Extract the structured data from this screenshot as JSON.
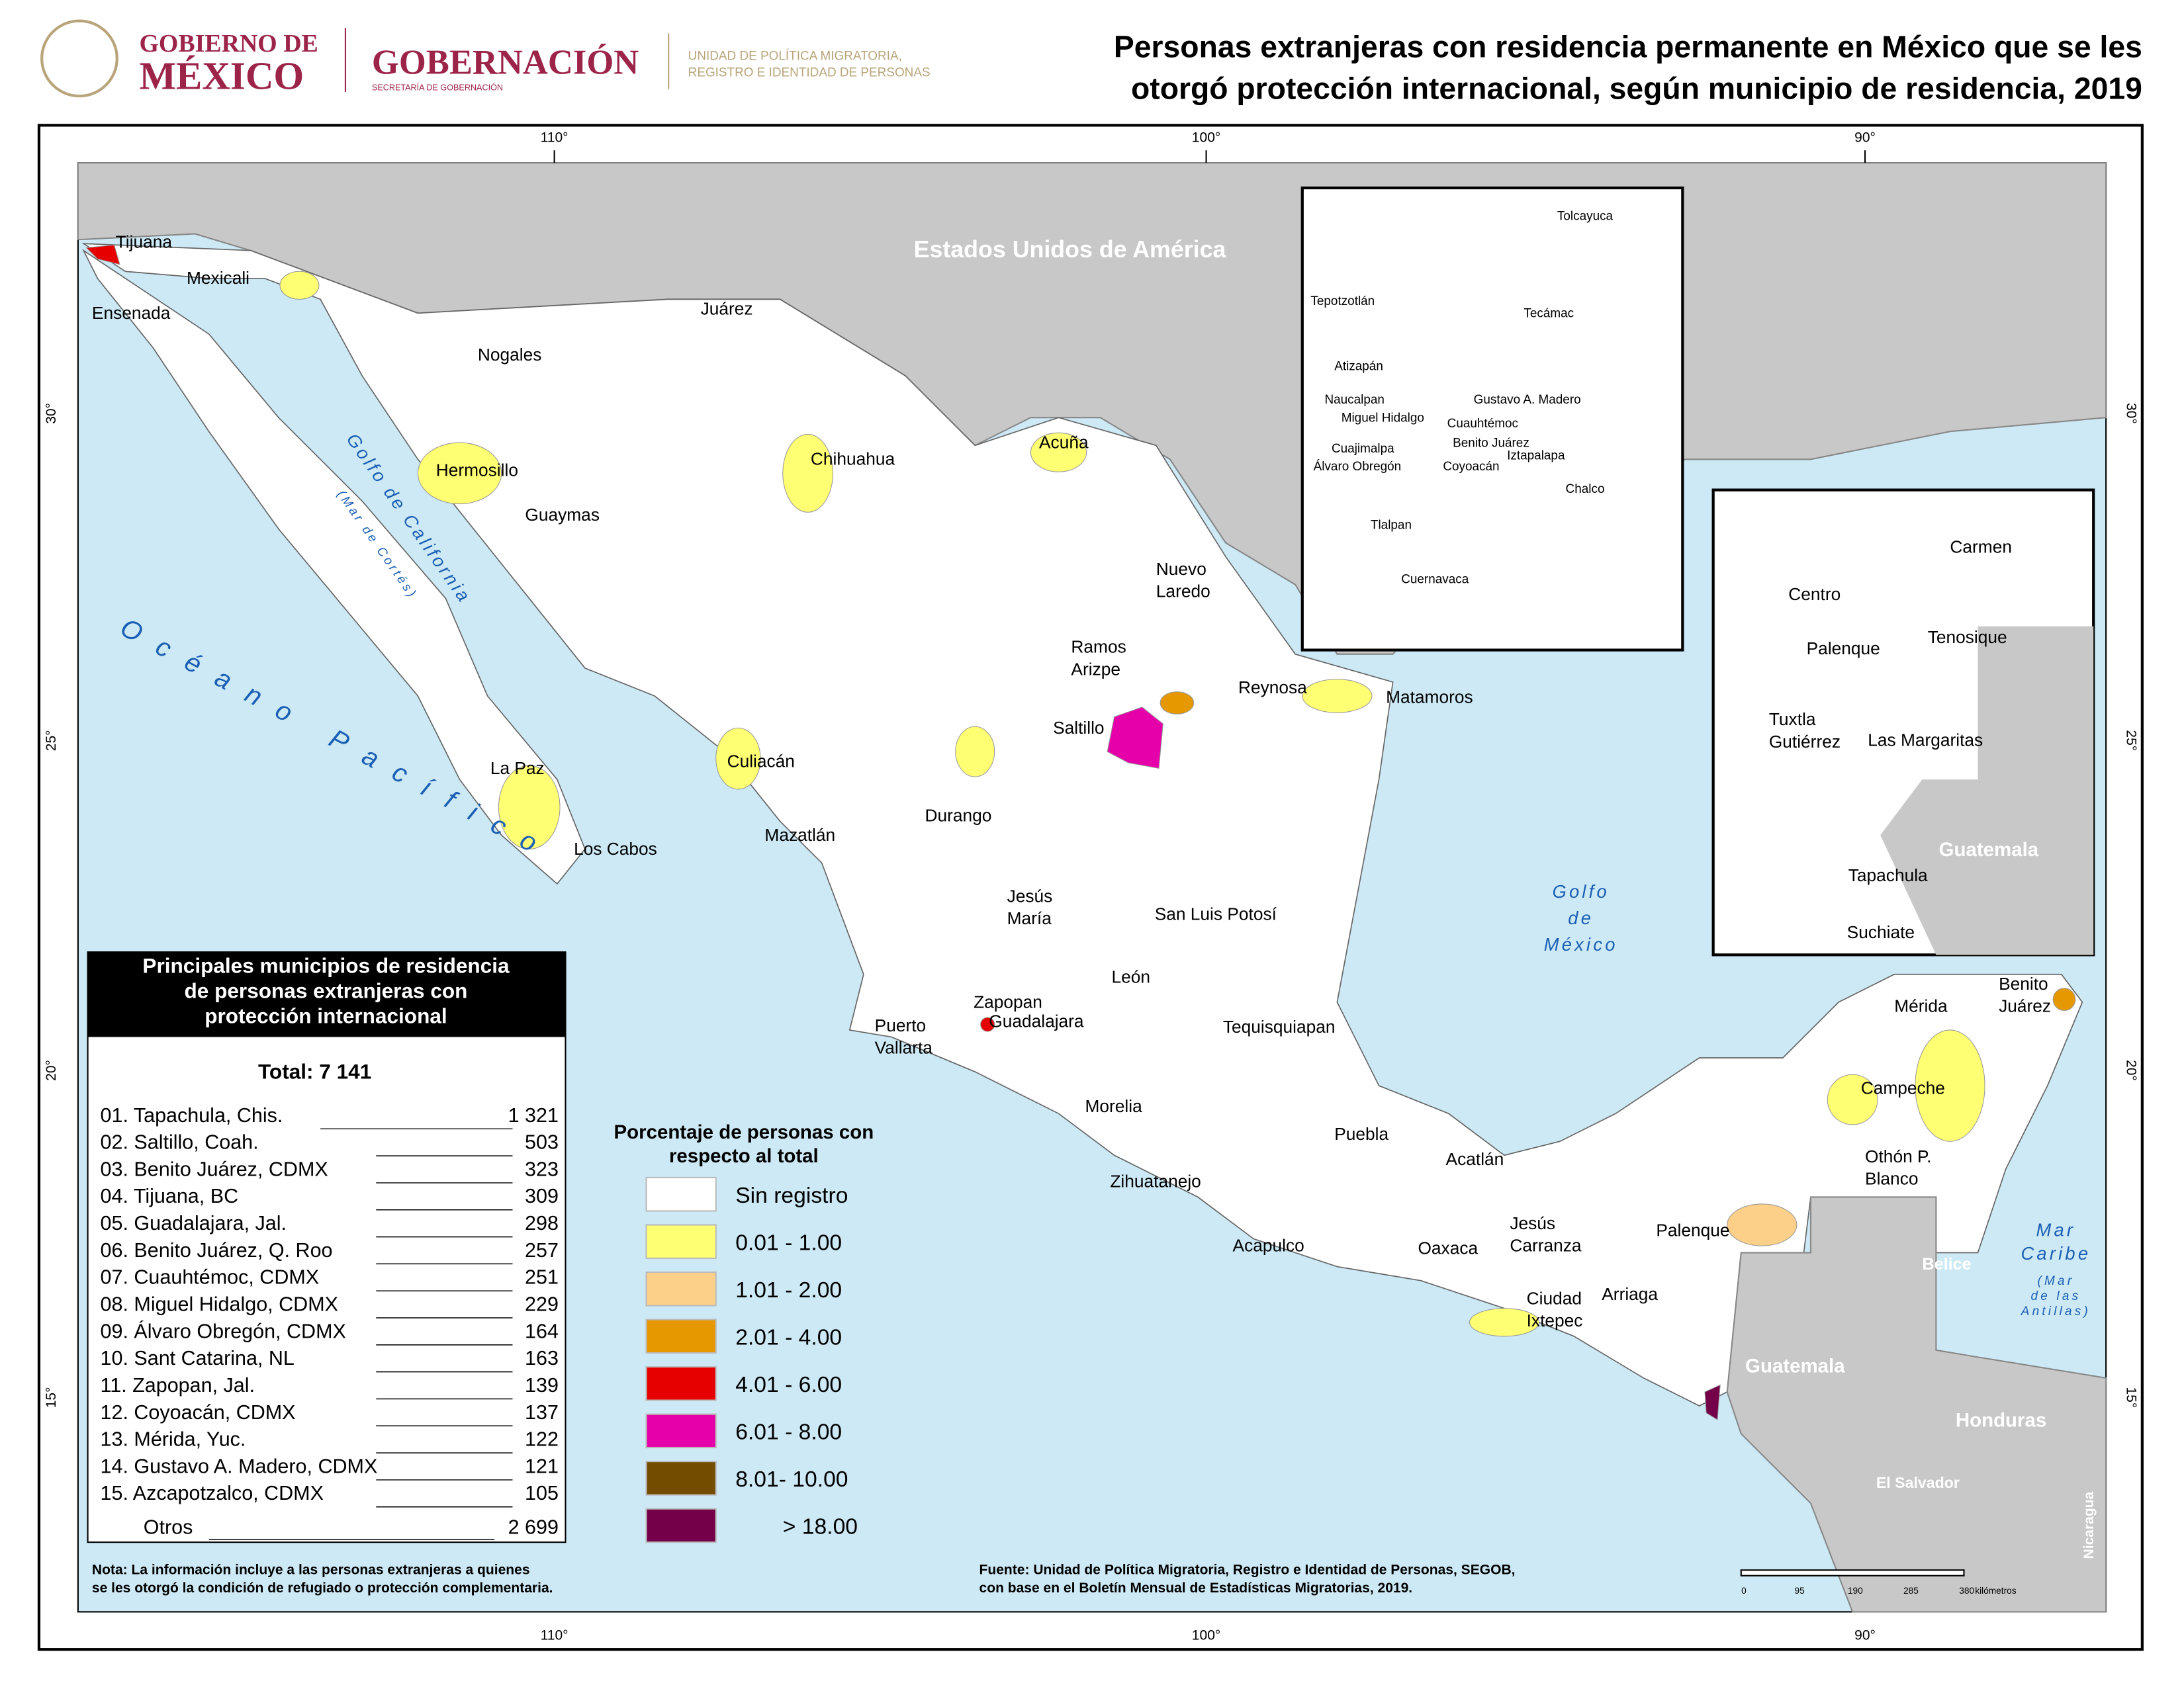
{
  "header": {
    "gov_line1": "GOBIERNO DE",
    "gov_line2": "MÉXICO",
    "dept": "GOBERNACIÓN",
    "dept_sub": "SECRETARÍA DE GOBERNACIÓN",
    "unit_line1": "UNIDAD DE POLÍTICA MIGRATORIA,",
    "unit_line2": "REGISTRO E IDENTIDAD DE PERSONAS",
    "title_line1": "Personas extranjeras con residencia permanente en México que se les",
    "title_line2": "otorgó protección internacional, según municipio de residencia, 2019"
  },
  "graticule": {
    "longitudes": [
      "110°",
      "100°",
      "90°"
    ],
    "latitudes": [
      "30°",
      "25°",
      "20°",
      "15°"
    ]
  },
  "countries": [
    "Estados Unidos de América",
    "Guatemala",
    "Belice",
    "Honduras",
    "El Salvador",
    "Nicaragua",
    "Guatemala"
  ],
  "water": [
    [
      "Océano Pacífico"
    ],
    [
      "Golfo de California",
      "(Mar de Cortés)"
    ],
    [
      "Golfo",
      "de",
      "México"
    ],
    [
      "Mar",
      "Caribe"
    ],
    [
      "(Mar",
      "de las",
      "Antillas)"
    ]
  ],
  "places": [
    [
      "Tijuana"
    ],
    [
      "Mexicali"
    ],
    [
      "Ensenada"
    ],
    [
      "Nogales"
    ],
    [
      "Juárez"
    ],
    [
      "Hermosillo"
    ],
    [
      "Guaymas"
    ],
    [
      "Chihuahua"
    ],
    [
      "Acuña"
    ],
    [
      "Nuevo",
      "Laredo"
    ],
    [
      "Ramos",
      "Arizpe"
    ],
    [
      "Reynosa"
    ],
    [
      "Matamoros"
    ],
    [
      "Saltillo"
    ],
    [
      "Culiacán"
    ],
    [
      "La Paz"
    ],
    [
      "Los Cabos"
    ],
    [
      "Mazatlán"
    ],
    [
      "Durango"
    ],
    [
      "Jesús",
      "María"
    ],
    [
      "San Luis Potosí"
    ],
    [
      "Zapopan"
    ],
    [
      "Guadalajara"
    ],
    [
      "Puerto",
      "Vallarta"
    ],
    [
      "León"
    ],
    [
      "Tequisquiapan"
    ],
    [
      "Morelia"
    ],
    [
      "Puebla"
    ],
    [
      "Zihuatanejo"
    ],
    [
      "Acatlán"
    ],
    [
      "Acapulco"
    ],
    [
      "Oaxaca"
    ],
    [
      "Jesús",
      "Carranza"
    ],
    [
      "Ciudad",
      "Ixtepec"
    ],
    [
      "Arriaga"
    ],
    [
      "Palenque"
    ],
    [
      "Mérida"
    ],
    [
      "Benito",
      "Juárez"
    ],
    [
      "Campeche"
    ],
    [
      "Othón P.",
      "Blanco"
    ]
  ],
  "inset_cdmx": [
    "Tolcayuca",
    "Tepotzotlán",
    "Tecámac",
    "Atizapán",
    "Naucalpan",
    "Gustavo A. Madero",
    "Miguel Hidalgo",
    "Cuauhtémoc",
    "Cuajimalpa",
    "Benito Juárez",
    "Iztapalapa",
    "Álvaro Obregón",
    "Coyoacán",
    "Chalco",
    "Tlalpan",
    "Cuernavaca"
  ],
  "inset_south": [
    [
      "Carmen"
    ],
    [
      "Centro"
    ],
    [
      "Palenque"
    ],
    [
      "Tenosique"
    ],
    [
      "Tuxtla",
      "Gutiérrez"
    ],
    [
      "Las Margaritas"
    ],
    [
      "Tapachula"
    ],
    [
      "Suchiate"
    ]
  ],
  "table": {
    "title": [
      "Principales municipios de residencia",
      "de personas extranjeras con",
      "protección internacional"
    ],
    "total": "Total: 7 141",
    "rows": [
      [
        "01. Tapachula, Chis.",
        "1 321"
      ],
      [
        "02. Saltillo, Coah.",
        "503"
      ],
      [
        "03. Benito Juárez, CDMX",
        "323"
      ],
      [
        "04. Tijuana, BC",
        "309"
      ],
      [
        "05. Guadalajara, Jal.",
        "298"
      ],
      [
        "06. Benito Juárez, Q. Roo",
        "257"
      ],
      [
        "07. Cuauhtémoc, CDMX",
        "251"
      ],
      [
        "08. Miguel Hidalgo, CDMX",
        "229"
      ],
      [
        "09. Álvaro Obregón, CDMX",
        "164"
      ],
      [
        "10. Sant Catarina, NL",
        "163"
      ],
      [
        "11. Zapopan, Jal.",
        "139"
      ],
      [
        "12. Coyoacán, CDMX",
        "137"
      ],
      [
        "13. Mérida, Yuc.",
        "122"
      ],
      [
        "14. Gustavo A. Madero, CDMX",
        "121"
      ],
      [
        "15. Azcapotzalco, CDMX",
        "105"
      ]
    ],
    "others": [
      "Otros",
      "2 699"
    ]
  },
  "legend": {
    "title": [
      "Porcentaje de personas con",
      "respecto al total"
    ],
    "items": [
      {
        "label": "Sin registro",
        "color": "#ffffff"
      },
      {
        "label": "0.01 - 1.00",
        "color": "#ffff73"
      },
      {
        "label": "1.01 - 2.00",
        "color": "#fcd088"
      },
      {
        "label": "2.01 - 4.00",
        "color": "#e69800"
      },
      {
        "label": "4.01 - 6.00",
        "color": "#e60000"
      },
      {
        "label": "6.01 - 8.00",
        "color": "#e600a9"
      },
      {
        "label": "8.01- 10.00",
        "color": "#734c00"
      },
      {
        "label": "> 18.00",
        "color": "#730048"
      }
    ]
  },
  "note": [
    "Nota: La información incluye a las personas extranjeras a quienes",
    "se les otorgó la condición de refugiado o protección complementaria."
  ],
  "source": [
    "Fuente: Unidad de Política Migratoria, Registro e Identidad de Personas, SEGOB,",
    "con base en el Boletín Mensual de Estadísticas Migratorias, 2019."
  ],
  "scale": [
    "0",
    "95",
    "190",
    "285",
    "380",
    "kilómetros"
  ]
}
